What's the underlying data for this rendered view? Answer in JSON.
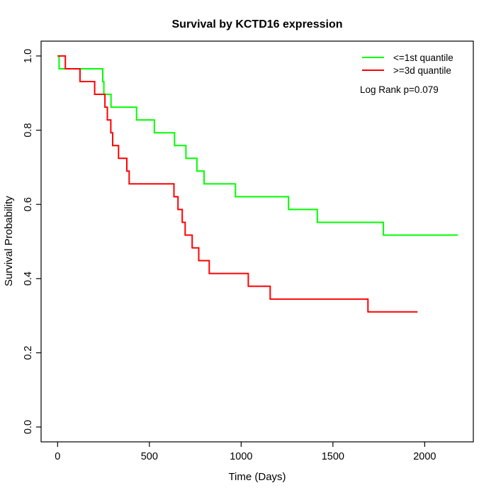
{
  "title": "Survival by KCTD16 expression",
  "legend": {
    "items": [
      {
        "label": "<=1st quantile",
        "color": "#00ff00"
      },
      {
        "label": ">=3d quantile",
        "color": "#ff0000"
      }
    ],
    "annotation": "Log Rank p=0.079"
  },
  "chart_data": {
    "type": "line",
    "subtype": "kaplan-meier-step",
    "title": "Survival by KCTD16 expression",
    "xlabel": "Time (Days)",
    "ylabel": "Survival Probability",
    "x_ticks": [
      0,
      500,
      1000,
      1500,
      2000
    ],
    "y_ticks": [
      0.0,
      0.2,
      0.4,
      0.6,
      0.8,
      1.0
    ],
    "xlim": [
      -90,
      2265
    ],
    "ylim": [
      -0.04,
      1.04
    ],
    "grid": false,
    "legend_position": "top-right",
    "annotation": "Log Rank p=0.079",
    "series": [
      {
        "name": "<=1st quantile",
        "color": "#00ff00",
        "end_time": 2181,
        "steps": [
          [
            0,
            1.0
          ],
          [
            8,
            0.9655
          ],
          [
            246,
            0.931
          ],
          [
            252,
            0.8966
          ],
          [
            291,
            0.8621
          ],
          [
            430,
            0.8276
          ],
          [
            527,
            0.7931
          ],
          [
            637,
            0.7586
          ],
          [
            699,
            0.7241
          ],
          [
            759,
            0.6897
          ],
          [
            798,
            0.6552
          ],
          [
            969,
            0.6207
          ],
          [
            1258,
            0.5862
          ],
          [
            1415,
            0.5517
          ],
          [
            1775,
            0.5172
          ]
        ]
      },
      {
        "name": ">=3d quantile",
        "color": "#ff0000",
        "end_time": 1961,
        "steps": [
          [
            0,
            1.0
          ],
          [
            42,
            0.9655
          ],
          [
            122,
            0.931
          ],
          [
            202,
            0.8966
          ],
          [
            258,
            0.8621
          ],
          [
            271,
            0.8276
          ],
          [
            290,
            0.7931
          ],
          [
            300,
            0.7586
          ],
          [
            332,
            0.7241
          ],
          [
            377,
            0.6897
          ],
          [
            390,
            0.6552
          ],
          [
            634,
            0.6207
          ],
          [
            656,
            0.5862
          ],
          [
            679,
            0.5517
          ],
          [
            695,
            0.5172
          ],
          [
            733,
            0.4828
          ],
          [
            769,
            0.4483
          ],
          [
            826,
            0.4138
          ],
          [
            1039,
            0.3793
          ],
          [
            1158,
            0.3448
          ],
          [
            1691,
            0.3103
          ]
        ]
      }
    ]
  },
  "layout_note": ""
}
